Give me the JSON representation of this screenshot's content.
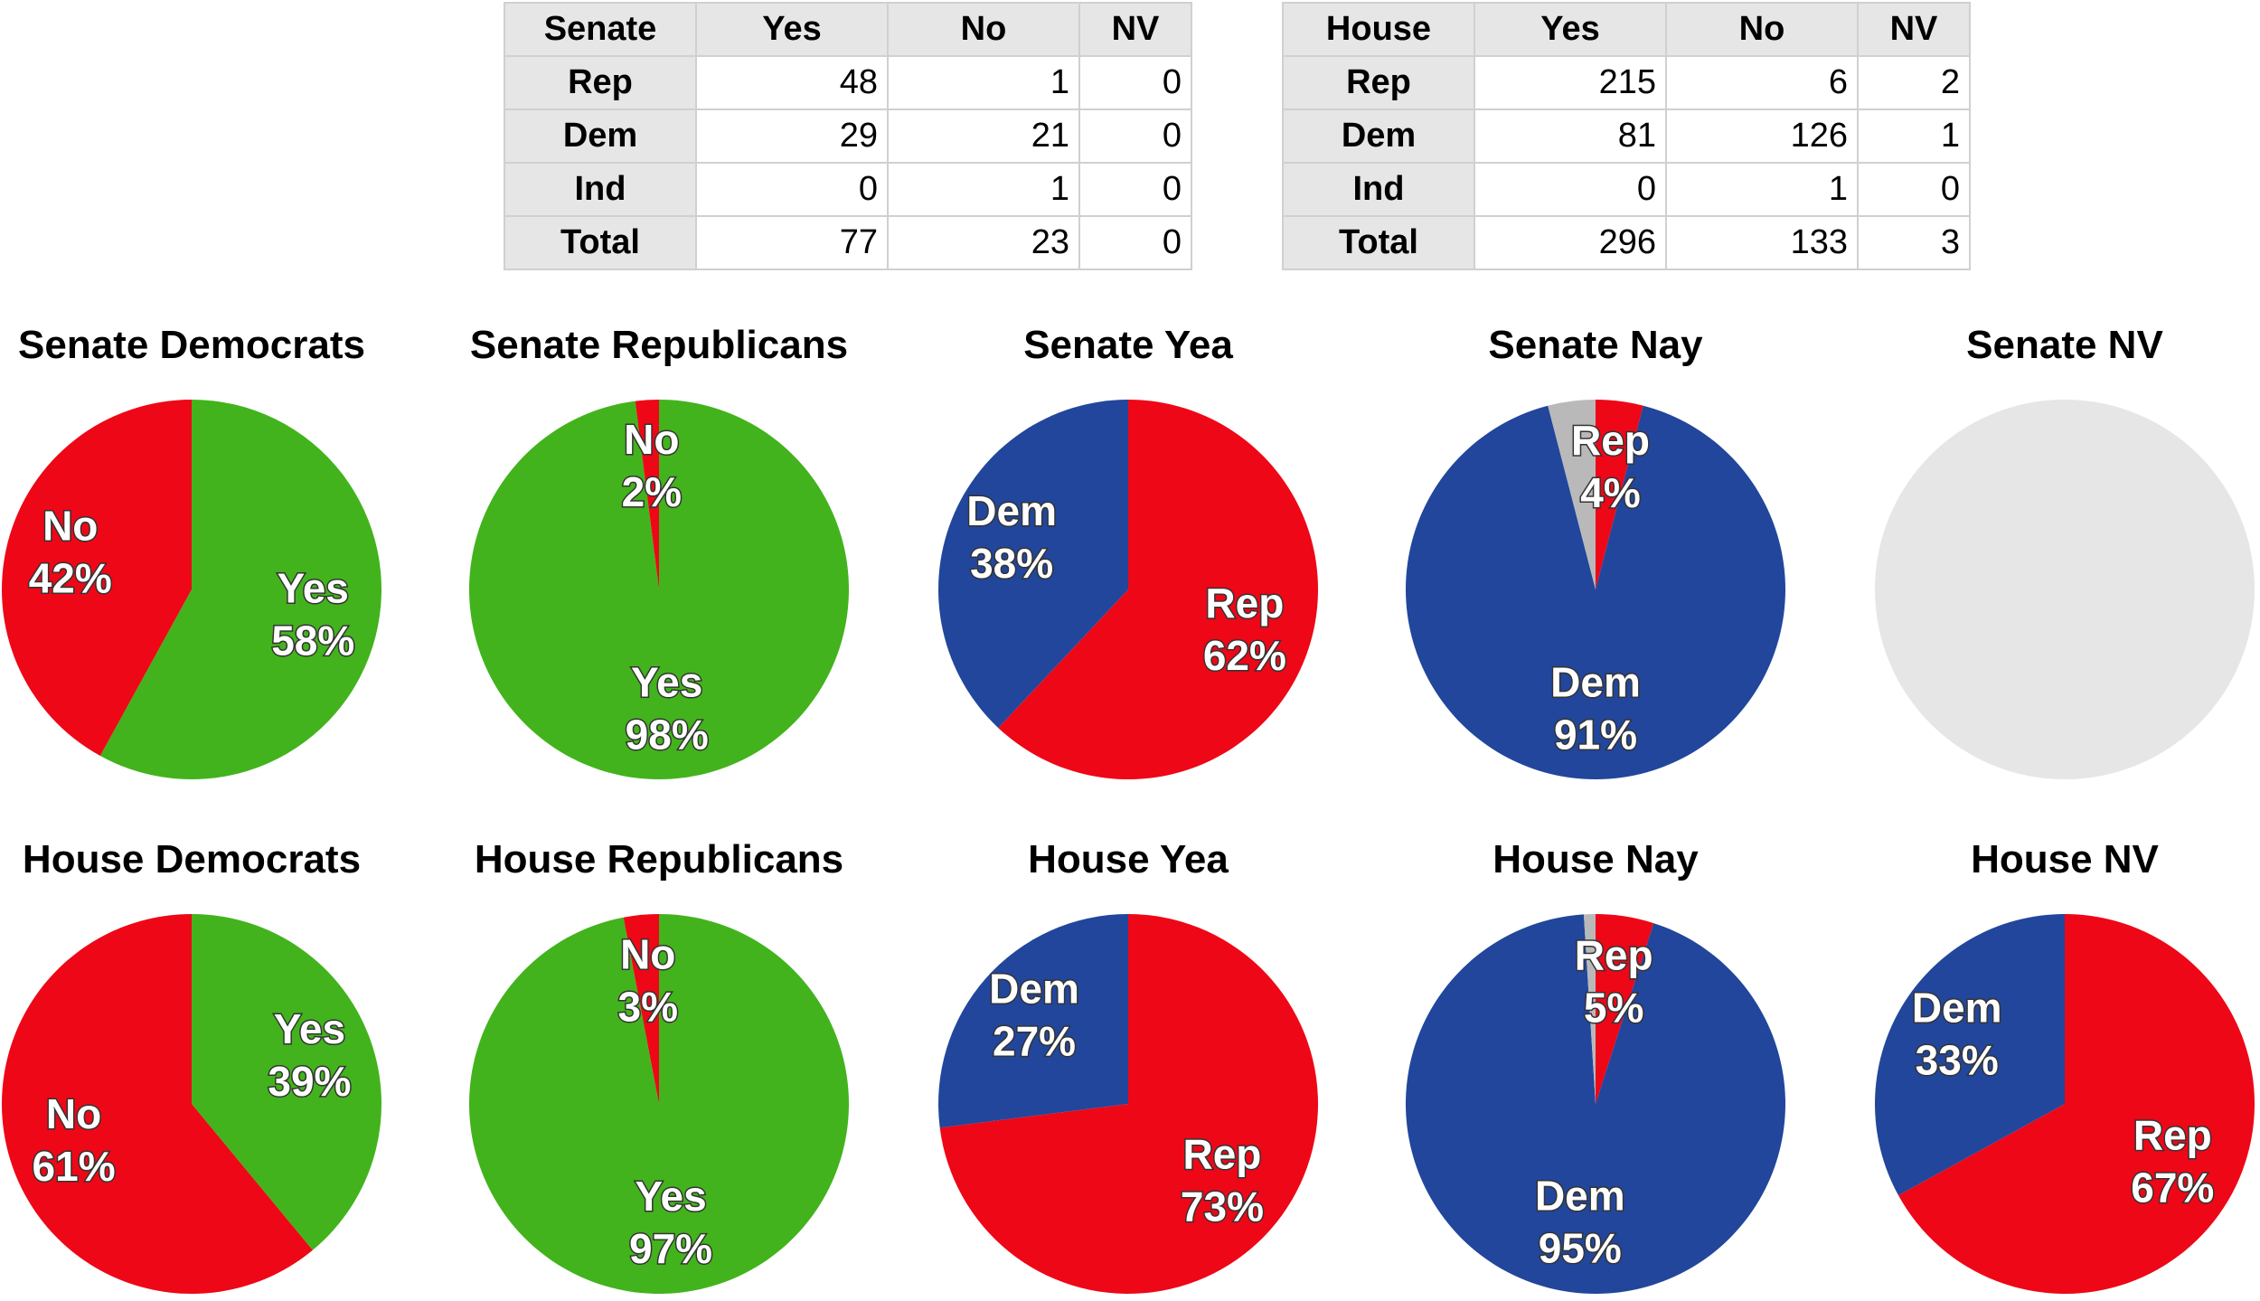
{
  "tables": [
    {
      "header": [
        "Senate",
        "Yes",
        "No",
        "NV"
      ],
      "rows": [
        [
          "Rep",
          "48",
          "1",
          "0"
        ],
        [
          "Dem",
          "29",
          "21",
          "0"
        ],
        [
          "Ind",
          "0",
          "1",
          "0"
        ],
        [
          "Total",
          "77",
          "23",
          "0"
        ]
      ]
    },
    {
      "header": [
        "House",
        "Yes",
        "No",
        "NV"
      ],
      "rows": [
        [
          "Rep",
          "215",
          "6",
          "2"
        ],
        [
          "Dem",
          "81",
          "126",
          "1"
        ],
        [
          "Ind",
          "0",
          "1",
          "0"
        ],
        [
          "Total",
          "296",
          "133",
          "3"
        ]
      ]
    }
  ],
  "colors": {
    "yes": "#42b31c",
    "no": "#ee0717",
    "rep": "#ee0717",
    "dem": "#21469c",
    "other": "#b9b9b9",
    "empty": "#e6e6e6"
  },
  "chart_data": [
    {
      "type": "pie",
      "title": "Senate Democrats",
      "slices": [
        {
          "label": "Yes",
          "value": 58,
          "color": "#42b31c",
          "shown": true
        },
        {
          "label": "No",
          "value": 42,
          "color": "#ee0717",
          "shown": true
        }
      ]
    },
    {
      "type": "pie",
      "title": "Senate Republicans",
      "slices": [
        {
          "label": "Yes",
          "value": 98,
          "color": "#42b31c",
          "shown": true
        },
        {
          "label": "No",
          "value": 2,
          "color": "#ee0717",
          "shown": true
        }
      ]
    },
    {
      "type": "pie",
      "title": "Senate Yea",
      "slices": [
        {
          "label": "Rep",
          "value": 62,
          "color": "#ee0717",
          "shown": true
        },
        {
          "label": "Dem",
          "value": 38,
          "color": "#21469c",
          "shown": true
        }
      ]
    },
    {
      "type": "pie",
      "title": "Senate Nay",
      "slices": [
        {
          "label": "Rep",
          "value": 4,
          "color": "#ee0717",
          "shown": true
        },
        {
          "label": "Dem",
          "value": 91,
          "color": "#21469c",
          "shown": true
        },
        {
          "label": "Ind",
          "value": 4,
          "color": "#b9b9b9",
          "shown": false
        }
      ]
    },
    {
      "type": "pie",
      "title": "Senate NV",
      "slices": []
    },
    {
      "type": "pie",
      "title": "House Democrats",
      "slices": [
        {
          "label": "Yes",
          "value": 39,
          "color": "#42b31c",
          "shown": true
        },
        {
          "label": "No",
          "value": 61,
          "color": "#ee0717",
          "shown": true
        }
      ]
    },
    {
      "type": "pie",
      "title": "House Republicans",
      "slices": [
        {
          "label": "Yes",
          "value": 97,
          "color": "#42b31c",
          "shown": true
        },
        {
          "label": "No",
          "value": 3,
          "color": "#ee0717",
          "shown": true
        }
      ]
    },
    {
      "type": "pie",
      "title": "House Yea",
      "slices": [
        {
          "label": "Rep",
          "value": 73,
          "color": "#ee0717",
          "shown": true
        },
        {
          "label": "Dem",
          "value": 27,
          "color": "#21469c",
          "shown": true
        }
      ]
    },
    {
      "type": "pie",
      "title": "House Nay",
      "slices": [
        {
          "label": "Rep",
          "value": 5,
          "color": "#ee0717",
          "shown": true
        },
        {
          "label": "Dem",
          "value": 95,
          "color": "#21469c",
          "shown": true
        },
        {
          "label": "Ind",
          "value": 1,
          "color": "#b9b9b9",
          "shown": false
        }
      ]
    },
    {
      "type": "pie",
      "title": "House NV",
      "slices": [
        {
          "label": "Rep",
          "value": 67,
          "color": "#ee0717",
          "shown": true
        },
        {
          "label": "Dem",
          "value": 33,
          "color": "#21469c",
          "shown": true
        }
      ]
    }
  ]
}
